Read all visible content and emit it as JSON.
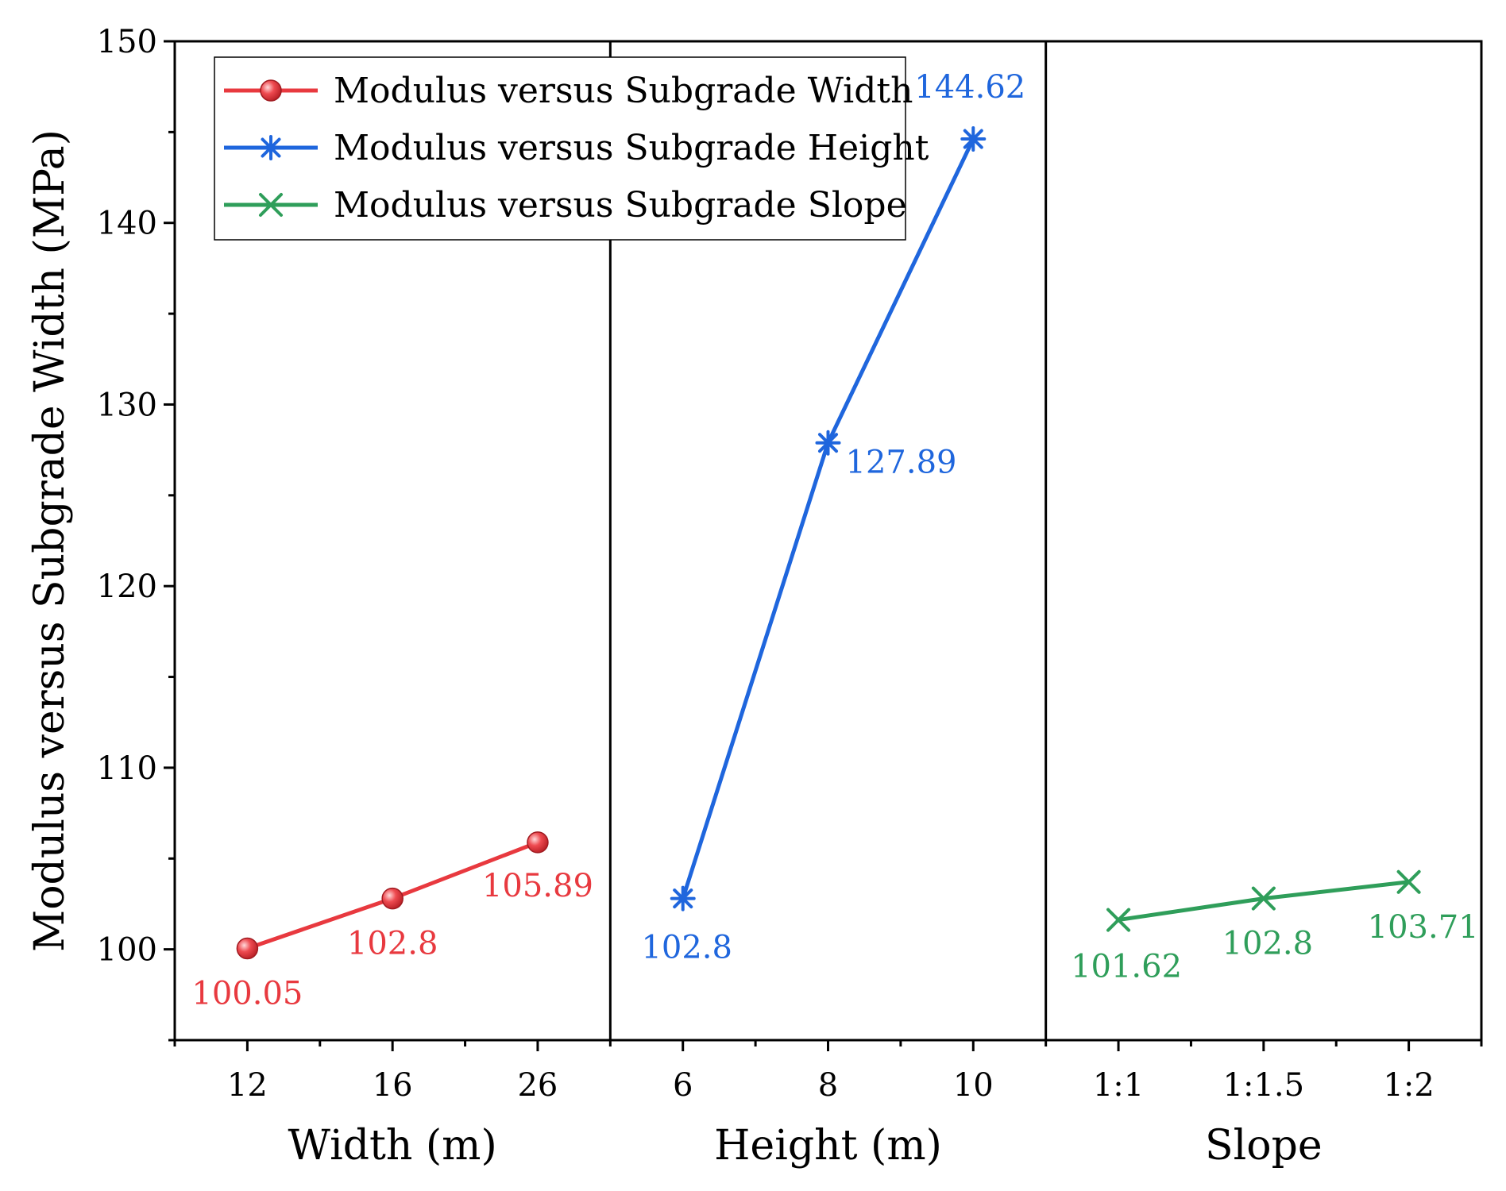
{
  "chart_data": {
    "type": "line",
    "ylabel": "Modulus versus Subgrade Width (MPa)",
    "ylim": [
      95,
      150
    ],
    "yticks": [
      100,
      110,
      120,
      130,
      140,
      150
    ],
    "y_minor_step": 5,
    "panels": [
      {
        "xlabel": "Width (m)",
        "categories": [
          "12",
          "16",
          "26"
        ]
      },
      {
        "xlabel": "Height (m)",
        "categories": [
          "6",
          "8",
          "10"
        ]
      },
      {
        "xlabel": "Slope",
        "categories": [
          "1:1",
          "1:1.5",
          "1:2"
        ]
      }
    ],
    "series": [
      {
        "name": "Modulus versus Subgrade Width",
        "panel": 0,
        "marker": "sphere",
        "color": "#e8393f",
        "values": [
          100.05,
          102.8,
          105.89
        ],
        "labels": [
          "100.05",
          "102.8",
          "105.89"
        ]
      },
      {
        "name": "Modulus versus Subgrade Height",
        "panel": 1,
        "marker": "asterisk",
        "color": "#1f66dd",
        "values": [
          102.8,
          127.89,
          144.62
        ],
        "labels": [
          "102.8",
          "127.89",
          "144.62"
        ]
      },
      {
        "name": "Modulus versus Subgrade Slope",
        "panel": 2,
        "marker": "x",
        "color": "#2f9e5a",
        "values": [
          101.62,
          102.8,
          103.71
        ],
        "labels": [
          "101.62",
          "102.8",
          "103.71"
        ]
      }
    ],
    "legend": {
      "position": "top-left"
    }
  }
}
